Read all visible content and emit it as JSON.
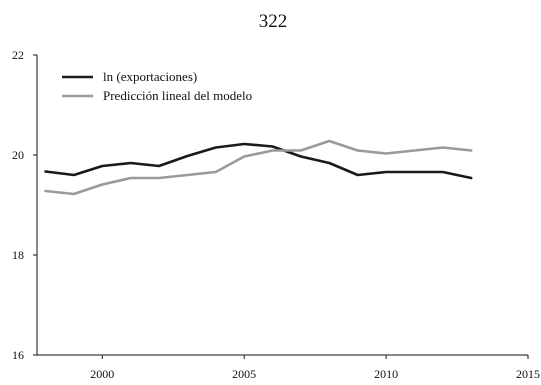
{
  "chart_data": {
    "type": "line",
    "title": "322",
    "xlabel": "",
    "ylabel": "",
    "xlim": [
      1997.7,
      2015
    ],
    "ylim": [
      16,
      22
    ],
    "xticks": [
      2000,
      2005,
      2010,
      2015
    ],
    "yticks": [
      16,
      18,
      20,
      22
    ],
    "grid": false,
    "legend_position": "top-left",
    "series": [
      {
        "name": "ln (exportaciones)",
        "color": "#1a1a1a",
        "x": [
          1998,
          1999,
          2000,
          2001,
          2002,
          2003,
          2004,
          2005,
          2006,
          2007,
          2008,
          2009,
          2010,
          2011,
          2012,
          2013
        ],
        "y": [
          19.67,
          19.6,
          19.78,
          19.84,
          19.78,
          19.98,
          20.15,
          20.22,
          20.17,
          19.97,
          19.84,
          19.6,
          19.66,
          19.66,
          19.66,
          19.54
        ]
      },
      {
        "name": "Predicción lineal del modelo",
        "color": "#9a9a9a",
        "x": [
          1998,
          1999,
          2000,
          2001,
          2002,
          2003,
          2004,
          2005,
          2006,
          2007,
          2008,
          2009,
          2010,
          2011,
          2012,
          2013
        ],
        "y": [
          19.28,
          19.22,
          19.41,
          19.54,
          19.54,
          19.6,
          19.66,
          19.97,
          20.09,
          20.09,
          20.28,
          20.09,
          20.03,
          20.09,
          20.15,
          20.09
        ]
      }
    ]
  }
}
